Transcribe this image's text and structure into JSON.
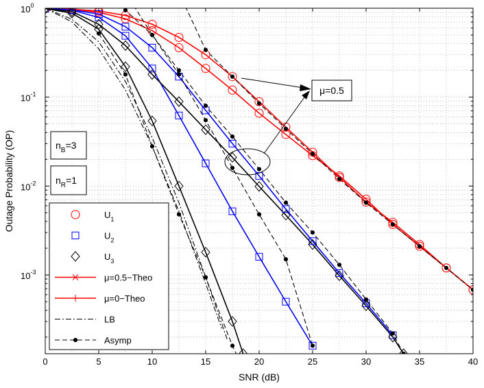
{
  "chart_data": {
    "type": "line",
    "xlabel": "SNR (dB)",
    "ylabel": "Outage Probability (OP)",
    "x_scale": "linear",
    "y_scale": "log",
    "xlim": [
      0,
      40
    ],
    "ylim": [
      0.00013,
      1
    ],
    "grid": true,
    "legend_position": "bottom-left",
    "x_ticks": [
      0,
      5,
      10,
      15,
      20,
      25,
      30,
      35,
      40
    ],
    "x_tick_labels": [
      "0",
      "5",
      "10",
      "15",
      "20",
      "25",
      "30",
      "35",
      "40"
    ],
    "y_ticks": [
      0.001,
      0.01,
      0.1,
      1
    ],
    "y_tick_labels": [
      {
        "base": "10",
        "exp": "-3"
      },
      {
        "base": "10",
        "exp": "-2"
      },
      {
        "base": "10",
        "exp": "-1"
      },
      {
        "base": "10",
        "exp": "0"
      }
    ],
    "annotations": {
      "mu_label": "μ=0.5",
      "nB": {
        "base": "n",
        "sub": "B",
        "rest": "=3"
      },
      "nR": {
        "base": "n",
        "sub": "R",
        "rest": "=1"
      }
    },
    "legend": [
      {
        "base": "U",
        "sub": "1",
        "rest": "",
        "marker": "circle",
        "line": "none",
        "color": "#ff0000"
      },
      {
        "base": "U",
        "sub": "2",
        "rest": "",
        "marker": "square",
        "line": "none",
        "color": "#0000ff"
      },
      {
        "base": "U",
        "sub": "3",
        "rest": "",
        "marker": "diamond",
        "line": "none",
        "color": "#000000"
      },
      {
        "base": "μ=0.5−Theo",
        "sub": "",
        "rest": "",
        "marker": "x",
        "line": "solid",
        "color": "#ff0000"
      },
      {
        "base": "μ=0−Theo",
        "sub": "",
        "rest": "",
        "marker": "plus",
        "line": "solid",
        "color": "#ff0000"
      },
      {
        "base": "LB",
        "sub": "",
        "rest": "",
        "marker": "none",
        "line": "dashdot",
        "color": "#000000"
      },
      {
        "base": "Asymp",
        "sub": "",
        "rest": "",
        "marker": "dot",
        "line": "dashed",
        "color": "#000000"
      }
    ],
    "series": [
      {
        "group": "U1",
        "mu": 0.5,
        "color": "#ff0000",
        "line": "solid",
        "marker": "circle",
        "x": [
          0,
          2.5,
          5,
          7.5,
          10,
          12.5,
          15,
          17.5,
          20,
          22.5,
          25,
          27.5,
          30,
          32.5,
          35,
          37.5,
          40
        ],
        "y": [
          0.99,
          0.975,
          0.93,
          0.83,
          0.66,
          0.47,
          0.3,
          0.17,
          0.089,
          0.046,
          0.024,
          0.0125,
          0.0066,
          0.0039,
          0.0022,
          0.0012,
          0.00068
        ]
      },
      {
        "group": "U1",
        "mu": 0,
        "color": "#ff0000",
        "line": "solid",
        "marker": "circle",
        "x": [
          0,
          2.5,
          5,
          7.5,
          10,
          12.5,
          15,
          17.5,
          20,
          22.5,
          25,
          27.5,
          30,
          32.5,
          35,
          37.5,
          40
        ],
        "y": [
          0.99,
          0.97,
          0.9,
          0.76,
          0.56,
          0.36,
          0.21,
          0.12,
          0.066,
          0.038,
          0.022,
          0.013,
          0.0071,
          0.0037,
          0.0021,
          0.0012,
          0.00068
        ]
      },
      {
        "group": "U2",
        "mu": 0.5,
        "color": "#0000ff",
        "line": "solid",
        "marker": "square",
        "x": [
          0,
          2.5,
          5,
          7.5,
          10,
          12.5,
          15,
          17.5,
          20,
          22.5,
          25,
          27.5,
          30,
          32.5
        ],
        "y": [
          0.99,
          0.96,
          0.86,
          0.62,
          0.36,
          0.17,
          0.071,
          0.03,
          0.013,
          0.0055,
          0.0024,
          0.00105,
          0.00048,
          0.00021
        ]
      },
      {
        "group": "U2",
        "mu": 0,
        "color": "#0000ff",
        "line": "solid",
        "marker": "square",
        "x": [
          0,
          2.5,
          5,
          7.5,
          10,
          12.5,
          15,
          17.5,
          20,
          22.5,
          25
        ],
        "y": [
          0.99,
          0.95,
          0.79,
          0.49,
          0.21,
          0.062,
          0.018,
          0.0052,
          0.0016,
          0.0005,
          0.00016
        ]
      },
      {
        "group": "U3",
        "mu": 0.5,
        "color": "#000000",
        "line": "solid",
        "marker": "diamond",
        "x": [
          0,
          2.5,
          5,
          7.5,
          10,
          12.5,
          15,
          17.5,
          20,
          22.5,
          25,
          27.5,
          30,
          32.5,
          33.5
        ],
        "y": [
          0.99,
          0.92,
          0.66,
          0.38,
          0.18,
          0.089,
          0.043,
          0.021,
          0.0099,
          0.0047,
          0.0022,
          0.00098,
          0.00045,
          0.0002,
          0.00013
        ]
      },
      {
        "group": "U3",
        "mu": 0,
        "color": "#000000",
        "line": "solid",
        "marker": "diamond",
        "x": [
          0,
          2.5,
          5,
          7.5,
          10,
          12.5,
          15,
          17.5,
          18.5
        ],
        "y": [
          0.99,
          0.88,
          0.58,
          0.22,
          0.054,
          0.01,
          0.0018,
          0.0003,
          0.00013
        ]
      },
      {
        "group": "LB",
        "mu": 0,
        "color": "#000000",
        "line": "dashdot",
        "marker": "none",
        "x": [
          0,
          2.5,
          5,
          7.5,
          10,
          12.5,
          15,
          16.5
        ],
        "y": [
          1,
          0.7,
          0.35,
          0.12,
          0.028,
          0.0052,
          0.0008,
          0.00025
        ]
      },
      {
        "group": "LB",
        "mu": 0,
        "color": "#000000",
        "line": "dashdot",
        "marker": "none",
        "x": [
          0,
          2.5,
          5,
          7.5,
          10,
          12.5,
          15,
          17
        ],
        "y": [
          1,
          0.75,
          0.42,
          0.15,
          0.035,
          0.0065,
          0.00095,
          0.00019
        ]
      },
      {
        "group": "Asymp",
        "mu": 0,
        "color": "#000000",
        "line": "dashed",
        "marker": "dot",
        "x": [
          5,
          7.5,
          10,
          12.5,
          15,
          17.5,
          18.5
        ],
        "y": [
          0.52,
          0.18,
          0.028,
          0.0048,
          0.00094,
          0.00016,
          9e-05
        ]
      },
      {
        "group": "Asymp",
        "mu": 0,
        "color": "#000000",
        "line": "dashed",
        "marker": "dot",
        "x": [
          5,
          7.5,
          10,
          12.5,
          15,
          17.5,
          20,
          22.5,
          25
        ],
        "y": [
          1.5,
          0.95,
          0.5,
          0.18,
          0.055,
          0.016,
          0.0048,
          0.0015,
          0.00016
        ]
      },
      {
        "group": "Asymp",
        "mu": 0,
        "color": "#000000",
        "line": "dashed",
        "marker": "dot",
        "x": [
          7.5,
          10,
          12.5,
          15,
          17.5,
          20,
          22.5,
          25,
          27.5,
          30,
          32.5,
          33.5
        ],
        "y": [
          1.5,
          0.5,
          0.2,
          0.08,
          0.036,
          0.0155,
          0.0065,
          0.003,
          0.0013,
          0.00053,
          0.00022,
          0.00013
        ]
      },
      {
        "group": "Asymp",
        "mu": 0,
        "color": "#000000",
        "line": "dashed",
        "marker": "dot",
        "x": [
          12.5,
          15,
          17.5,
          20,
          22.5,
          25,
          27.5,
          30,
          32.5,
          35,
          37.5,
          40
        ],
        "y": [
          1.5,
          0.34,
          0.17,
          0.085,
          0.044,
          0.023,
          0.012,
          0.0065,
          0.0037,
          0.0021,
          0.0012,
          0.00068
        ]
      }
    ]
  }
}
